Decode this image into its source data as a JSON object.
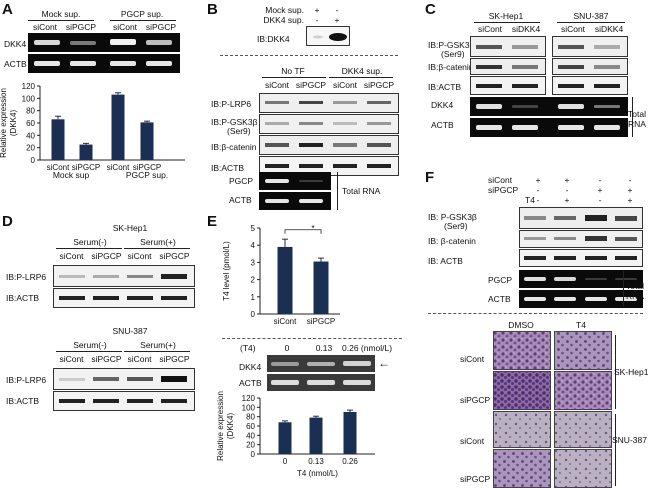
{
  "panels": {
    "A": {
      "label": "A",
      "groups": [
        "Mock sup.",
        "PGCP sup."
      ],
      "lanes": [
        "siCont",
        "siPGCP",
        "siCont",
        "siPGCP"
      ],
      "gel_rows": [
        "DKK4",
        "ACTB"
      ],
      "xgroups": [
        "Mock sup",
        "PGCP sup."
      ]
    },
    "B": {
      "label": "B",
      "top_rows": [
        "Mock sup.",
        "DKK4 sup."
      ],
      "top_signs": {
        "mock": [
          "+",
          "-"
        ],
        "dkk4": [
          "-",
          "+"
        ]
      },
      "top_blot": "IB:DKK4",
      "groups": [
        "No TF",
        "DKK4 sup."
      ],
      "lanes": [
        "siCont",
        "siPGCP",
        "siCont",
        "siPGCP"
      ],
      "blot_rows": [
        "IB:P-LRP6",
        "IB:P-GSK3β",
        "(Ser9)",
        "IB:β-catenin",
        "IB:ACTB"
      ],
      "rna_rows": [
        "PGCP",
        "ACTB"
      ],
      "rna_label": "Total RNA"
    },
    "C": {
      "label": "C",
      "groups": [
        "SK-Hep1",
        "SNU-387"
      ],
      "lanes": [
        "siCont",
        "siDKK4",
        "siCont",
        "siDKK4"
      ],
      "blot_rows": [
        "IB:P-GSK3β",
        "(Ser9)",
        "IB:β-catenin",
        "IB:ACTB"
      ],
      "rna_rows": [
        "DKK4",
        "ACTB"
      ],
      "rna_label": [
        "Total",
        "RNA"
      ]
    },
    "D": {
      "label": "D",
      "cell_lines": [
        "SK-Hep1",
        "SNU-387"
      ],
      "groups": [
        "Serum(-)",
        "Serum(+)"
      ],
      "lanes": [
        "siCont",
        "siPGCP",
        "siCont",
        "siPGCP"
      ],
      "blot_rows": [
        "IB:P-LRP6",
        "IB:ACTB"
      ]
    },
    "E": {
      "label": "E",
      "significance": "*",
      "t4_header": "(T4)",
      "t4_doses": [
        "0",
        "0.13",
        "0.26 (nmol/L)"
      ],
      "gel_rows": [
        "DKK4",
        "ACTB"
      ],
      "arrow": "←"
    },
    "F": {
      "label": "F",
      "treatments": [
        "siCont",
        "siPGCP",
        "T4"
      ],
      "signs": {
        "siCont": [
          "+",
          "+",
          "-",
          "-"
        ],
        "siPGCP": [
          "-",
          "-",
          "+",
          "+"
        ],
        "T4": [
          "-",
          "+",
          "-",
          "+"
        ]
      },
      "blot_rows": [
        "IB: P-GSK3β",
        "(Ser9)",
        "IB: β-catenin",
        "IB: ACTB"
      ],
      "rna_rows": [
        "PGCP",
        "ACTB"
      ],
      "rna_label": [
        "Total",
        "RNA"
      ],
      "micro_cols": [
        "DMSO",
        "T4"
      ],
      "micro_rows": [
        "siCont",
        "siPGCP",
        "siCont",
        "siPGCP"
      ],
      "cell_lines": [
        "SK-Hep1",
        "SNU-387"
      ]
    }
  },
  "chart_data": [
    {
      "type": "bar",
      "panel": "A",
      "categories": [
        "siCont",
        "siPGCP",
        "siCont",
        "siPGCP"
      ],
      "groups": [
        "Mock sup",
        "PGCP sup."
      ],
      "values": [
        66,
        25,
        106,
        61
      ],
      "errors": [
        5,
        2,
        3,
        2
      ],
      "ylabel": "Relative expression (DKK4)",
      "ylim": [
        0,
        120
      ],
      "yticks": [
        0,
        20,
        40,
        60,
        80,
        100,
        120
      ],
      "color": "#1b2f55"
    },
    {
      "type": "bar",
      "panel": "E-top",
      "categories": [
        "siCont",
        "siPGCP"
      ],
      "values": [
        3.9,
        3.05
      ],
      "errors": [
        0.45,
        0.2
      ],
      "ylabel": "T4 level (pmol/L)",
      "ylim": [
        0,
        5
      ],
      "yticks": [
        0,
        1,
        2,
        3,
        4,
        5
      ],
      "color": "#1b2f55"
    },
    {
      "type": "bar",
      "panel": "E-bottom",
      "categories": [
        "0",
        "0.13",
        "0.26"
      ],
      "values": [
        68,
        78,
        90
      ],
      "errors": [
        3,
        3,
        4
      ],
      "ylabel": "Relative expression (DKK4)",
      "xlabel": "T4 (nmol/L)",
      "ylim": [
        0,
        120
      ],
      "yticks": [
        0,
        20,
        40,
        60,
        80,
        100,
        120
      ],
      "color": "#1b2f55"
    }
  ]
}
